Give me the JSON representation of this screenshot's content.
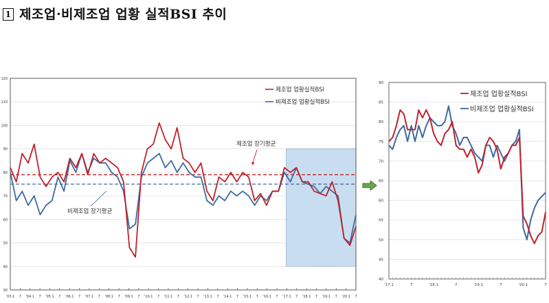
{
  "title": {
    "marker": "1",
    "text": "제조업·비제조업 업황 실적BSI 추이"
  },
  "colors": {
    "manufacturing": "#c0202a",
    "non_manufacturing": "#3a6aa0",
    "highlight": "#c9ddf0",
    "arrow": "#6aa84f"
  },
  "annotations": {
    "mfg_avg": "제조업 장기평균",
    "nonmfg_avg": "비제조업 장기평균"
  },
  "chart_data": [
    {
      "type": "line",
      "title": "제조업·비제조업 업황 실적BSI 추이 (2003-2020)",
      "xlabel": "",
      "ylabel": "",
      "ylim": [
        30,
        120
      ],
      "yticks": [
        30,
        40,
        50,
        60,
        70,
        80,
        90,
        100,
        110,
        120
      ],
      "xtick_labels": [
        "'03.1",
        "7",
        "'04.1",
        "7",
        "'05.1",
        "7",
        "'06.1",
        "7",
        "'07.1",
        "7",
        "'08.1",
        "7",
        "'09.1",
        "7",
        "'10.1",
        "7",
        "'11.1",
        "7",
        "'12.1",
        "7",
        "'13.1",
        "7",
        "'14.1",
        "7",
        "'15.1",
        "7",
        "'16.1",
        "7",
        "'17.1",
        "7",
        "'18.1",
        "7",
        "'19.1",
        "7",
        "'20.1",
        "7"
      ],
      "legend": [
        "제조업 업황실적BSI",
        "비제조업 업황실적BSI"
      ],
      "legend_position": "upper right",
      "reference_lines": [
        {
          "name": "제조업 장기평균",
          "value": 79,
          "style": "dashed",
          "color": "#c0202a"
        },
        {
          "name": "비제조업 장기평균",
          "value": 75,
          "style": "dashed",
          "color": "#3a6aa0"
        }
      ],
      "highlight_region": {
        "from": "'17.1",
        "to": "'20.7",
        "ymin": 40,
        "ymax": 90
      },
      "series": [
        {
          "name": "제조업 업황실적BSI",
          "points_per_half_year": [
            82,
            76,
            88,
            84,
            92,
            78,
            74,
            78,
            80,
            76,
            86,
            82,
            88,
            79,
            88,
            84,
            86,
            84,
            82,
            76,
            48,
            44,
            80,
            90,
            92,
            101,
            94,
            90,
            99,
            86,
            84,
            80,
            84,
            72,
            68,
            78,
            76,
            80,
            76,
            80,
            78,
            68,
            71,
            66,
            72,
            72,
            82,
            80,
            82,
            76,
            76,
            72,
            71,
            70,
            76,
            68,
            52,
            49,
            57
          ]
        },
        {
          "name": "비제조업 업황실적BSI",
          "points_per_half_year": [
            80,
            68,
            72,
            66,
            70,
            62,
            66,
            68,
            78,
            72,
            85,
            80,
            88,
            80,
            86,
            84,
            84,
            80,
            78,
            72,
            56,
            58,
            78,
            84,
            86,
            88,
            82,
            85,
            80,
            84,
            80,
            78,
            78,
            68,
            66,
            70,
            68,
            72,
            70,
            72,
            70,
            66,
            70,
            68,
            72,
            72,
            80,
            76,
            82,
            76,
            75,
            74,
            71,
            74,
            72,
            70,
            52,
            50,
            62
          ]
        }
      ]
    },
    {
      "type": "line",
      "title": "제조업·비제조업 업황 실적BSI 추이 (2017.1-2020.7)",
      "xlabel": "",
      "ylabel": "",
      "ylim": [
        40,
        90
      ],
      "yticks": [
        40,
        45,
        50,
        55,
        60,
        65,
        70,
        75,
        80,
        85,
        90
      ],
      "xtick_labels": [
        "'17.1",
        "7",
        "'18.1",
        "7",
        "'19.1",
        "7",
        "'20.1",
        "7"
      ],
      "legend": [
        "제조업 업황실적BSI",
        "비제조업 업황실적BSI"
      ],
      "legend_position": "upper right",
      "x": [
        "17.1",
        "17.2",
        "17.3",
        "17.4",
        "17.5",
        "17.6",
        "17.7",
        "17.8",
        "17.9",
        "17.10",
        "17.11",
        "17.12",
        "18.1",
        "18.2",
        "18.3",
        "18.4",
        "18.5",
        "18.6",
        "18.7",
        "18.8",
        "18.9",
        "18.10",
        "18.11",
        "18.12",
        "19.1",
        "19.2",
        "19.3",
        "19.4",
        "19.5",
        "19.6",
        "19.7",
        "19.8",
        "19.9",
        "19.10",
        "19.11",
        "19.12",
        "20.1",
        "20.2",
        "20.3",
        "20.4",
        "20.5",
        "20.6",
        "20.7"
      ],
      "series": [
        {
          "name": "제조업 업황실적BSI",
          "values": [
            75,
            76,
            79,
            83,
            82,
            78,
            78,
            78,
            83,
            81,
            83,
            81,
            77,
            75,
            74,
            77,
            78,
            80,
            74,
            73,
            73,
            71,
            73,
            71,
            67,
            69,
            74,
            76,
            75,
            73,
            68,
            71,
            72,
            74,
            74,
            76,
            56,
            54,
            51,
            49,
            51,
            52,
            57
          ]
        },
        {
          "name": "비제조업 업황실적BSI",
          "values": [
            74,
            73,
            76,
            78,
            79,
            75,
            79,
            75,
            79,
            76,
            79,
            81,
            80,
            79,
            79,
            80,
            84,
            79,
            77,
            74,
            76,
            76,
            74,
            72,
            71,
            70,
            74,
            74,
            71,
            74,
            72,
            70,
            72,
            74,
            75,
            78,
            53,
            50,
            55,
            58,
            60,
            61,
            62
          ]
        }
      ]
    }
  ]
}
